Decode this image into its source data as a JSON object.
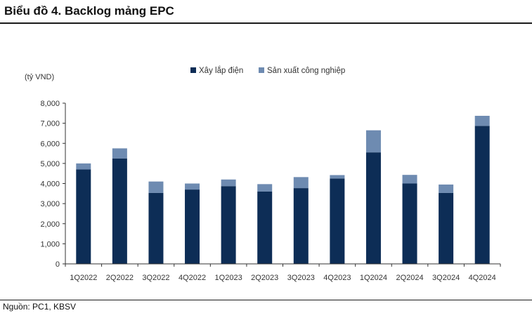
{
  "header": {
    "title": "Biểu đồ 4. Backlog mảng EPC"
  },
  "footer": {
    "source": "Nguồn: PC1,  KBSV"
  },
  "chart_data": {
    "type": "bar",
    "stacked": true,
    "title": "Biểu đồ 4. Backlog mảng EPC",
    "ylabel": "(tỷ VND)",
    "xlabel": "",
    "ylim": [
      0,
      8000
    ],
    "yticks": [
      0,
      1000,
      2000,
      3000,
      4000,
      5000,
      6000,
      7000,
      8000
    ],
    "ytick_labels": [
      "0",
      "1,000",
      "2,000",
      "3,000",
      "4,000",
      "5,000",
      "6,000",
      "7,000",
      "8,000"
    ],
    "grid": false,
    "legend_position": "top-center",
    "categories": [
      "1Q2022",
      "2Q2022",
      "3Q2022",
      "4Q2022",
      "1Q2023",
      "2Q2023",
      "3Q2023",
      "4Q2023",
      "1Q2024",
      "2Q2024",
      "3Q2024",
      "4Q2024"
    ],
    "series": [
      {
        "name": "Xây lắp điện",
        "color": "#0d2d56",
        "values": [
          4700,
          5250,
          3530,
          3700,
          3870,
          3600,
          3770,
          4250,
          5550,
          4000,
          3530,
          6870
        ]
      },
      {
        "name": "Sản xuất công nghiệp",
        "color": "#6e8bb1",
        "values": [
          300,
          500,
          570,
          300,
          330,
          370,
          550,
          170,
          1100,
          430,
          420,
          500
        ]
      }
    ]
  }
}
